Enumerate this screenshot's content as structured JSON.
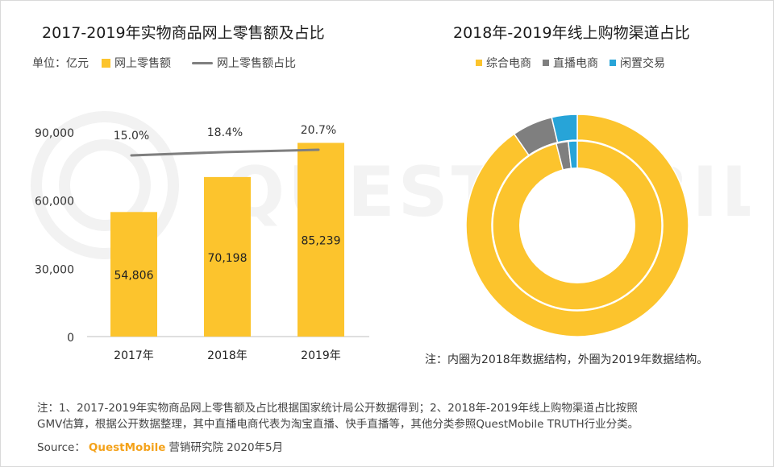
{
  "left_title": "2017-2019年实物商品网上零售额及占比",
  "right_title": "2018年-2019年线上购物渠道占比",
  "unit_label": "单位：亿元",
  "left_legend": {
    "bar": "网上零售额",
    "line": "网上零售额占比"
  },
  "right_legend": [
    "综合电商",
    "直播电商",
    "闲置交易"
  ],
  "donut_note": "注：内圈为2018年数据结构，外圈为2019年数据结构。",
  "footer": {
    "line1": "注：1、2017-2019年实物商品网上零售额及占比根据国家统计局公开数据得到；2、2018年-2019年线上购物渠道占比按照",
    "line2": "GMV估算，根据公开数据整理，其中直播电商代表为淘宝直播、快手直播等，其他分类参照QuestMobile TRUTH行业分类。",
    "source_prefix": "Source：",
    "source_brand": "QuestMobile",
    "source_suffix": "营销研究院 2020年5月"
  },
  "watermark_text": "QUESTMOBILE",
  "colors": {
    "bar": "#fcc42d",
    "line": "#7f7f7f",
    "integrated": "#fcc42d",
    "live": "#7f7f7f",
    "idle": "#27a4d8"
  },
  "chart_data": [
    {
      "type": "bar",
      "title": "2017-2019年实物商品网上零售额及占比",
      "categories": [
        "2017年",
        "2018年",
        "2019年"
      ],
      "series": [
        {
          "name": "网上零售额",
          "type": "bar",
          "values": [
            54806,
            70198,
            85239
          ],
          "labels": [
            "54,806",
            "70,198",
            "85,239"
          ]
        },
        {
          "name": "网上零售额占比",
          "type": "line",
          "values": [
            15.0,
            18.4,
            20.7
          ],
          "labels": [
            "15.0%",
            "18.4%",
            "20.7%"
          ]
        }
      ],
      "ylim": [
        0,
        90000
      ],
      "yticks": [
        0,
        30000,
        60000,
        90000
      ],
      "ytick_labels": [
        "0",
        "30,000",
        "60,000",
        "90,000"
      ],
      "ylabel": "单位：亿元",
      "line_ylim": [
        0,
        22
      ],
      "legend": "top-left",
      "grid": false
    },
    {
      "type": "pie",
      "title": "2018年-2019年线上购物渠道占比",
      "style": "donut",
      "categories": [
        "综合电商",
        "直播电商",
        "闲置交易"
      ],
      "series": [
        {
          "name": "2019",
          "ring": "outer",
          "values": [
            90.4,
            5.9,
            3.7
          ]
        },
        {
          "name": "2018",
          "ring": "inner",
          "values": [
            96.0,
            2.3,
            1.7
          ]
        }
      ],
      "legend": "top-center"
    }
  ]
}
